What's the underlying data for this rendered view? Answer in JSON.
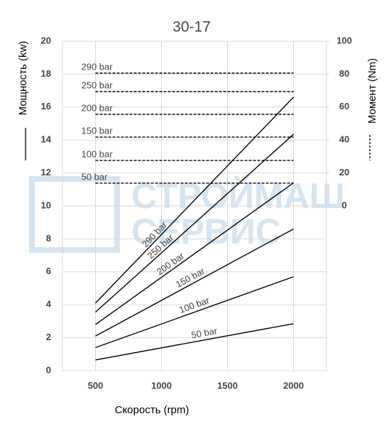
{
  "chart_data": {
    "type": "line",
    "title": "30-17",
    "x_label": "Скорость (rpm)",
    "y_label": "Мощность (kw)",
    "y2_label": "Момент (Nm)",
    "watermark": [
      "СТРОЙМАШ",
      "СЕРВИС"
    ],
    "x": [
      500,
      2000
    ],
    "xlim": [
      250,
      2250
    ],
    "xticks": [
      500,
      1000,
      1500,
      2000
    ],
    "ylim": [
      0,
      20
    ],
    "yticks": [
      0,
      2,
      4,
      6,
      8,
      10,
      12,
      14,
      16,
      18,
      20
    ],
    "y2lim": [
      -100,
      100
    ],
    "y2ticks": [
      0,
      20,
      40,
      60,
      80,
      100
    ],
    "grid": true,
    "series": [
      {
        "name": "290 bar",
        "color": "#000000",
        "values": [
          4.1,
          16.6
        ]
      },
      {
        "name": "250 bar",
        "color": "#000000",
        "values": [
          3.55,
          14.35
        ]
      },
      {
        "name": "200 bar",
        "color": "#000000",
        "values": [
          2.8,
          11.4
        ]
      },
      {
        "name": "150 bar",
        "color": "#000000",
        "values": [
          2.1,
          8.6
        ]
      },
      {
        "name": "100 bar",
        "color": "#000000",
        "values": [
          1.4,
          5.7
        ]
      },
      {
        "name": "50 bar",
        "color": "#000000",
        "values": [
          0.65,
          2.85
        ]
      },
      {
        "name": "290 bar",
        "color": "#000000",
        "axis": "y2",
        "dashed": true,
        "values": [
          80.6,
          80.6
        ]
      },
      {
        "name": "250 bar",
        "color": "#000000",
        "axis": "y2",
        "dashed": true,
        "values": [
          69.4,
          69.4
        ]
      },
      {
        "name": "200 bar",
        "color": "#000000",
        "axis": "y2",
        "dashed": true,
        "values": [
          55.6,
          55.6
        ]
      },
      {
        "name": "150 bar",
        "color": "#000000",
        "axis": "y2",
        "dashed": true,
        "values": [
          41.8,
          41.8
        ]
      },
      {
        "name": "100 bar",
        "color": "#000000",
        "axis": "y2",
        "dashed": true,
        "values": [
          27.6,
          27.6
        ]
      },
      {
        "name": "50 bar",
        "color": "#000000",
        "axis": "y2",
        "dashed": true,
        "values": [
          13.8,
          13.8
        ]
      }
    ]
  }
}
